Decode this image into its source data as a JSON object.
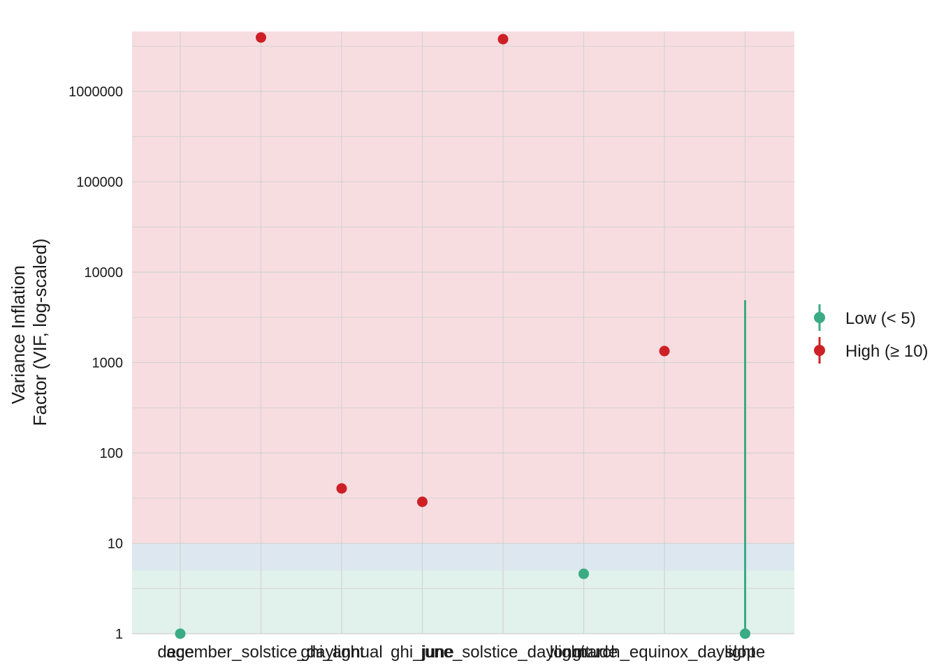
{
  "chart_data": {
    "type": "scatter",
    "title": "",
    "xlabel": "",
    "ylabel_lines": [
      "Variance Inflation",
      "Factor (VIF, log-scaled)"
    ],
    "y_scale": "log10",
    "ylim": [
      1,
      5000000
    ],
    "y_ticks": [
      1,
      10,
      100,
      1000,
      10000,
      100000,
      1000000
    ],
    "y_tick_labels": [
      "1",
      "10",
      "100",
      "1000",
      "10000",
      "100000",
      "1000000"
    ],
    "categories": [
      "age",
      "december_solstice_daylight",
      "ghi_annual",
      "ghi_june",
      "june_solstice_daylight",
      "longitude",
      "march_equinox_daylight",
      "slope"
    ],
    "points": [
      {
        "term": "age",
        "vif": 1.0,
        "group": "low"
      },
      {
        "term": "december_solstice_daylight",
        "vif": 3950000,
        "group": "high"
      },
      {
        "term": "ghi_annual",
        "vif": 40.5,
        "group": "high"
      },
      {
        "term": "ghi_june",
        "vif": 28.8,
        "group": "high"
      },
      {
        "term": "june_solstice_daylight",
        "vif": 3790000,
        "group": "high"
      },
      {
        "term": "longitude",
        "vif": 4.6,
        "group": "low"
      },
      {
        "term": "march_equinox_daylight",
        "vif": 1340,
        "group": "high"
      },
      {
        "term": "slope",
        "vif": 1.0,
        "group": "low",
        "ci_low": 1.0,
        "ci_high": 4900
      }
    ],
    "bands": [
      {
        "from": 1,
        "to": 5,
        "color": "#e1f1ec"
      },
      {
        "from": 5,
        "to": 10,
        "color": "#dde7ef"
      },
      {
        "from": 10,
        "to": 5000000,
        "color": "#f8dde0"
      }
    ],
    "grid": true,
    "legend": {
      "position": "right",
      "items": [
        {
          "label": "Low (< 5)",
          "color": "#3aab84",
          "group": "low"
        },
        {
          "label": "High (≥ 10)",
          "color": "#cd2026",
          "group": "high"
        }
      ]
    },
    "colors": {
      "low": "#3aab84",
      "high": "#cd2026",
      "grid": "#d3d3d3"
    }
  }
}
